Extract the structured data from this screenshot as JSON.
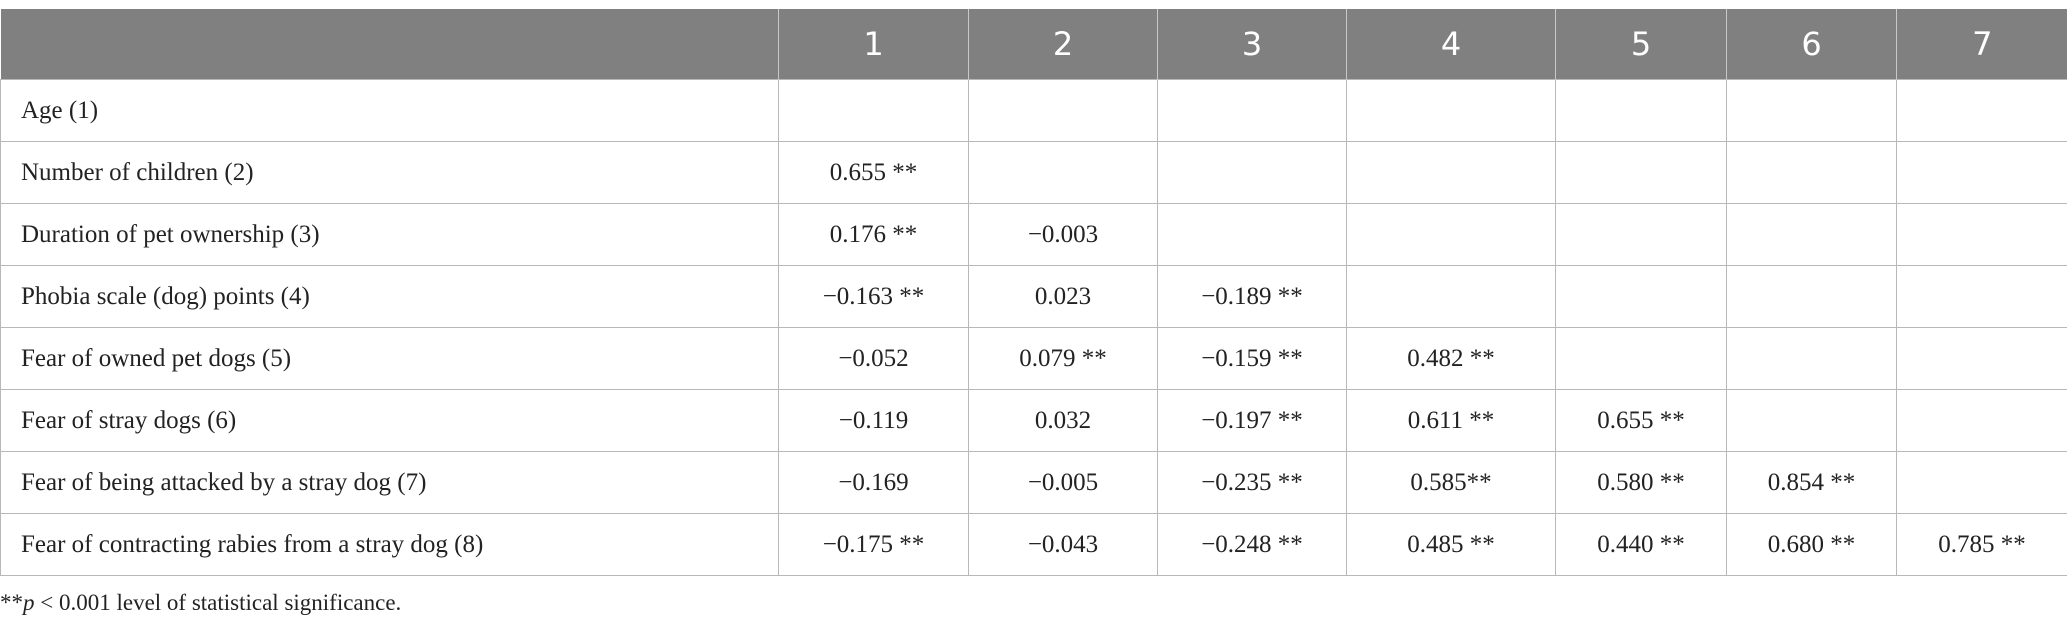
{
  "table": {
    "header": [
      "1",
      "2",
      "3",
      "4",
      "5",
      "6",
      "7"
    ],
    "rows": [
      {
        "label": "Age (1)",
        "cells": [
          null,
          null,
          null,
          null,
          null,
          null,
          null
        ]
      },
      {
        "label": "Number of children (2)",
        "cells": [
          "0.655 **",
          null,
          null,
          null,
          null,
          null,
          null
        ]
      },
      {
        "label": "Duration of pet ownership (3)",
        "cells": [
          "0.176 **",
          "−0.003",
          null,
          null,
          null,
          null,
          null
        ]
      },
      {
        "label": "Phobia scale (dog) points (4)",
        "cells": [
          "−0.163 **",
          "0.023",
          "−0.189 **",
          null,
          null,
          null,
          null
        ]
      },
      {
        "label": "Fear of owned pet dogs (5)",
        "cells": [
          "−0.052",
          "0.079 **",
          "−0.159 **",
          "0.482 **",
          null,
          null,
          null
        ]
      },
      {
        "label": "Fear of stray dogs (6)",
        "cells": [
          "−0.119",
          "0.032",
          "−0.197 **",
          "0.611 **",
          "0.655 **",
          null,
          null
        ]
      },
      {
        "label": "Fear of being attacked by a stray dog (7)",
        "cells": [
          "−0.169",
          "−0.005",
          "−0.235 **",
          "0.585**",
          "0.580 **",
          "0.854 **",
          null
        ]
      },
      {
        "label": "Fear of contracting rabies from a stray dog (8)",
        "cells": [
          "−0.175 **",
          "−0.043",
          "−0.248 **",
          "0.485 **",
          "0.440 **",
          "0.680 **",
          "0.785 **"
        ]
      }
    ]
  },
  "footnote": {
    "prefix": "**",
    "symbol": "p",
    "text": " < 0.001 level of statistical significance."
  }
}
